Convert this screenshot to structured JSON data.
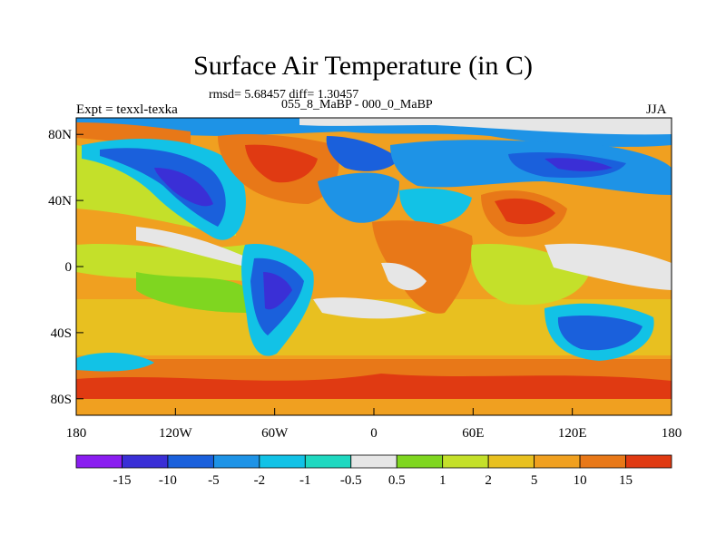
{
  "title": "Surface Air Temperature (in C)",
  "stats": "rmsd= 5.68457 diff= 1.30457",
  "subtitle": "055_8_MaBP - 000_0_MaBP",
  "left_label": "Expt = texxl-texka",
  "right_label": "JJA",
  "y_ticks": [
    {
      "label": "80N",
      "lat": 80
    },
    {
      "label": "40N",
      "lat": 40
    },
    {
      "label": "0",
      "lat": 0
    },
    {
      "label": "40S",
      "lat": -40
    },
    {
      "label": "80S",
      "lat": -80
    }
  ],
  "x_ticks": [
    {
      "label": "180",
      "lon": -180
    },
    {
      "label": "120W",
      "lon": -120
    },
    {
      "label": "60W",
      "lon": -60
    },
    {
      "label": "0",
      "lon": 0
    },
    {
      "label": "60E",
      "lon": 60
    },
    {
      "label": "120E",
      "lon": 120
    },
    {
      "label": "180",
      "lon": 180
    }
  ],
  "colorbar": {
    "colors": [
      "#8a1df0",
      "#3a2fd6",
      "#1a60dc",
      "#1e93e6",
      "#12c2e6",
      "#1fd8c0",
      "#e6e6e6",
      "#7fd620",
      "#c4e02a",
      "#e8c020",
      "#f0a020",
      "#e87818",
      "#e03a12"
    ],
    "labels": [
      "-15",
      "-10",
      "-5",
      "-2",
      "-1",
      "-0.5",
      "0.5",
      "1",
      "2",
      "5",
      "10",
      "15"
    ]
  },
  "map": {
    "lon_range": [
      -180,
      180
    ],
    "lat_range": [
      -90,
      90
    ],
    "background": "#f0a020"
  }
}
